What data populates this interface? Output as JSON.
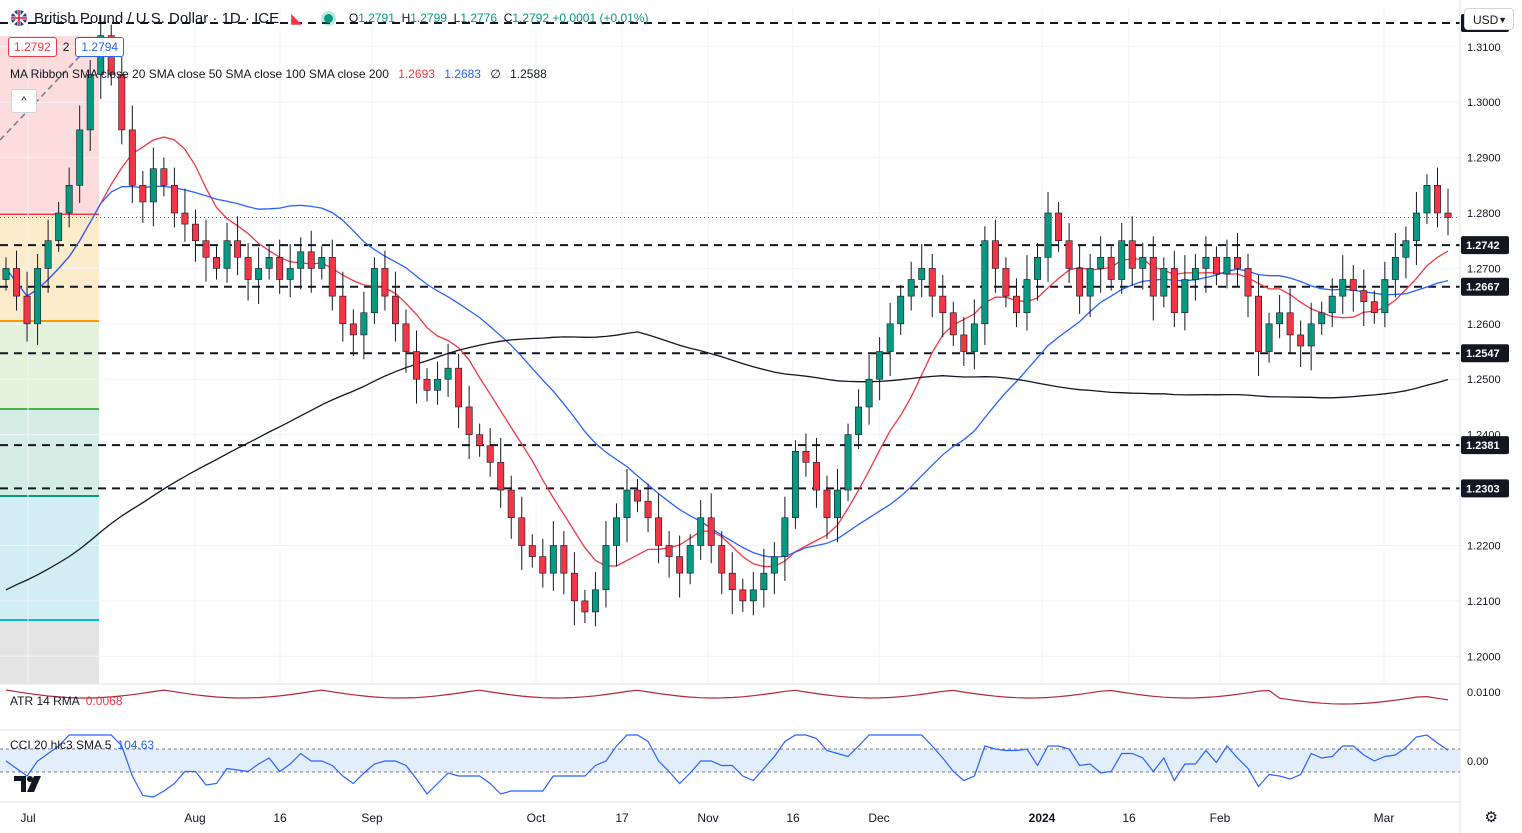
{
  "header": {
    "title": "British Pound / U.S. Dollar · 1D · ICE",
    "ohlc": {
      "o": "1.2791",
      "h": "1.2799",
      "l": "1.2776",
      "c": "1.2792",
      "chg": "+0.0001 (+0.01%)"
    },
    "bid": "1.2792",
    "spread": "2",
    "ask": "1.2794",
    "currency": "USD"
  },
  "ma_ribbon": {
    "label": "MA Ribbon SMA close 20 SMA close 50 SMA close 100 SMA close 200",
    "v20": "1.2693",
    "v50": "1.2683",
    "v100": "∅",
    "v200": "1.2588"
  },
  "atr": {
    "label": "ATR 14 RMA",
    "value": "0.0068",
    "axis": "0.0100"
  },
  "cci": {
    "label": "CCI 20 hlc3 SMA 5",
    "value": "104.63",
    "axis": "0.00"
  },
  "colors": {
    "up": "#089981",
    "down": "#f23645",
    "sma20": "#f23645",
    "sma50": "#2962ff",
    "sma200": "#131722"
  },
  "price_axis": {
    "ticks": [
      "1.3100",
      "1.3000",
      "1.2900",
      "1.2800",
      "1.2700",
      "1.2600",
      "1.2500",
      "1.2400",
      "1.2200",
      "1.2100",
      "1.2000"
    ]
  },
  "levels": [
    "1.3143",
    "1.2742",
    "1.2667",
    "1.2547",
    "1.2381",
    "1.2303"
  ],
  "time_axis": [
    "Jul",
    "Aug",
    "16",
    "Sep",
    "Oct",
    "17",
    "Nov",
    "16",
    "Dec",
    "2024",
    "16",
    "Feb",
    "Mar"
  ],
  "chart_data": {
    "type": "candlestick",
    "title": "British Pound / U.S. Dollar · 1D · ICE",
    "ylim": [
      1.195,
      1.317
    ],
    "horizontal_levels": [
      1.3143,
      1.2742,
      1.2667,
      1.2547,
      1.2381,
      1.2303
    ],
    "closes_approx": [
      1.27,
      1.265,
      1.26,
      1.27,
      1.275,
      1.28,
      1.285,
      1.295,
      1.305,
      1.312,
      1.305,
      1.295,
      1.285,
      1.282,
      1.288,
      1.285,
      1.28,
      1.278,
      1.275,
      1.272,
      1.27,
      1.275,
      1.272,
      1.268,
      1.27,
      1.272,
      1.268,
      1.27,
      1.273,
      1.27,
      1.272,
      1.265,
      1.26,
      1.258,
      1.262,
      1.27,
      1.265,
      1.26,
      1.255,
      1.25,
      1.248,
      1.25,
      1.252,
      1.245,
      1.24,
      1.238,
      1.235,
      1.23,
      1.225,
      1.22,
      1.218,
      1.215,
      1.22,
      1.215,
      1.21,
      1.208,
      1.212,
      1.22,
      1.225,
      1.23,
      1.228,
      1.225,
      1.22,
      1.218,
      1.215,
      1.22,
      1.225,
      1.22,
      1.215,
      1.212,
      1.21,
      1.212,
      1.215,
      1.218,
      1.225,
      1.237,
      1.235,
      1.23,
      1.225,
      1.23,
      1.24,
      1.245,
      1.25,
      1.255,
      1.26,
      1.265,
      1.268,
      1.27,
      1.265,
      1.262,
      1.258,
      1.255,
      1.26,
      1.275,
      1.27,
      1.265,
      1.262,
      1.268,
      1.272,
      1.28,
      1.275,
      1.27,
      1.265,
      1.27,
      1.272,
      1.268,
      1.275,
      1.27,
      1.272,
      1.265,
      1.27,
      1.262,
      1.268,
      1.27,
      1.272,
      1.269,
      1.272,
      1.27,
      1.265,
      1.255,
      1.26,
      1.262,
      1.258,
      1.256,
      1.26,
      1.262,
      1.265,
      1.268,
      1.266,
      1.264,
      1.262,
      1.268,
      1.272,
      1.275,
      1.28,
      1.285,
      1.28,
      1.2792
    ]
  }
}
